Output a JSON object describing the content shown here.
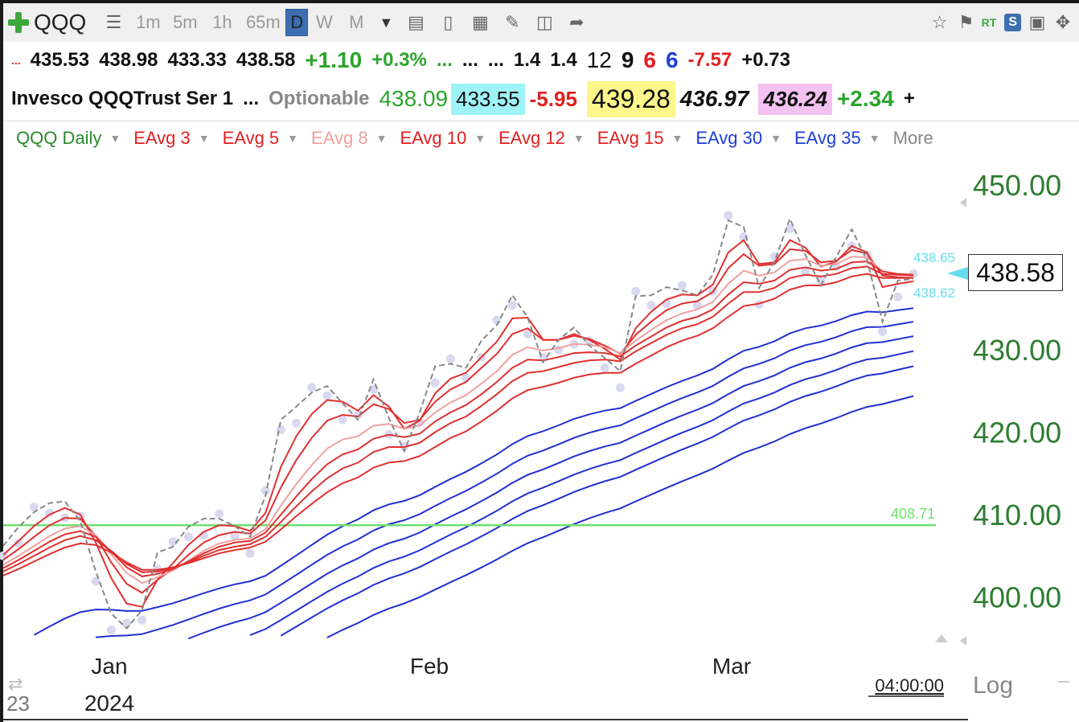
{
  "toolbar": {
    "symbol": "QQQ",
    "intervals": [
      "1m",
      "5m",
      "1h",
      "65m"
    ],
    "periods": [
      "D",
      "W",
      "M"
    ],
    "selected_period": "D",
    "rt_label": "RT",
    "s_label": "S"
  },
  "quote": {
    "dots": "...",
    "open": "435.53",
    "high": "438.98",
    "low": "433.33",
    "close": "438.58",
    "change": "+1.10",
    "change_pct": "+0.3%",
    "dots2": "...",
    "dots3": "...",
    "dots4": "...",
    "v1": "1.4",
    "v2": "1.4",
    "v3": "12",
    "v4": "9",
    "v5": "6",
    "v6": "6",
    "v7": "-7.57",
    "v8": "+0.73"
  },
  "info": {
    "name": "Invesco QQQTrust Ser 1",
    "dots": "...",
    "optionable": "Optionable",
    "last": "438.09",
    "bid": "433.55",
    "neg_change": "-5.95",
    "hi_val": "439.28",
    "val2": "436.97",
    "val3": "436.24",
    "pos_change": "+2.34",
    "more_sign": "+"
  },
  "indicators": [
    {
      "label": "QQQ Daily",
      "color": "#2b8a2b"
    },
    {
      "label": "EAvg 3",
      "color": "#e02020"
    },
    {
      "label": "EAvg 5",
      "color": "#e02020"
    },
    {
      "label": "EAvg 8",
      "color": "#f0a0a0"
    },
    {
      "label": "EAvg 10",
      "color": "#e02020"
    },
    {
      "label": "EAvg 12",
      "color": "#e02020"
    },
    {
      "label": "EAvg 15",
      "color": "#e02020"
    },
    {
      "label": "EAvg 30",
      "color": "#1e3fd8"
    },
    {
      "label": "EAvg 35",
      "color": "#1e3fd8"
    },
    {
      "label": "More",
      "color": "#888888"
    }
  ],
  "chart_data": {
    "type": "line",
    "title": "QQQ Daily",
    "y_ticks": [
      "450.00",
      "430.00",
      "420.00",
      "410.00",
      "400.00"
    ],
    "y_tick_values": [
      450,
      430,
      420,
      410,
      400
    ],
    "ylim": [
      395,
      453
    ],
    "x_tick_labels": [
      "Jan",
      "Feb",
      "Mar"
    ],
    "year_label": "2024",
    "left_edge_label": "23",
    "time_label": "04:00:00",
    "scale_label": "Log",
    "last_price": "438.58",
    "marker_high": "438.65",
    "marker_low": "438.62",
    "horizontal_line": {
      "label": "408.71",
      "value": 408.71,
      "color": "#6fe06f"
    },
    "colors": {
      "price": "#888888",
      "dots": "#d8d8f0",
      "short": "#e03030",
      "short_light": "#f0a0a0",
      "long": "#2030d0",
      "axis_text": "#2e7d32",
      "marker": "#66ddee"
    },
    "x": [
      "Dec 21",
      "Dec 22",
      "Dec 26",
      "Dec 27",
      "Dec 28",
      "Dec 29",
      "Jan 2",
      "Jan 3",
      "Jan 4",
      "Jan 5",
      "Jan 8",
      "Jan 9",
      "Jan 10",
      "Jan 11",
      "Jan 12",
      "Jan 16",
      "Jan 17",
      "Jan 18",
      "Jan 19",
      "Jan 22",
      "Jan 23",
      "Jan 24",
      "Jan 25",
      "Jan 26",
      "Jan 29",
      "Jan 30",
      "Jan 31",
      "Feb 1",
      "Feb 2",
      "Feb 5",
      "Feb 6",
      "Feb 7",
      "Feb 8",
      "Feb 9",
      "Feb 12",
      "Feb 13",
      "Feb 14",
      "Feb 15",
      "Feb 16",
      "Feb 20",
      "Feb 21",
      "Feb 22",
      "Feb 23",
      "Feb 26",
      "Feb 27",
      "Feb 28",
      "Feb 29",
      "Mar 1",
      "Mar 4",
      "Mar 5",
      "Mar 6",
      "Mar 7",
      "Mar 8",
      "Mar 11",
      "Mar 12",
      "Mar 13",
      "Mar 14",
      "Mar 15",
      "Mar 18",
      "Mar 19"
    ],
    "series": [
      {
        "role": "price",
        "values": [
          406.2,
          408.5,
          410.3,
          411.4,
          411.6,
          409.2,
          403.1,
          398.0,
          396.2,
          398.4,
          405.4,
          406.1,
          408.5,
          409.5,
          409.5,
          408.6,
          407.3,
          412.3,
          421.5,
          423.1,
          424.8,
          425.6,
          423.5,
          421.5,
          426.4,
          421.7,
          417.7,
          422.4,
          428.0,
          428.3,
          427.8,
          431.1,
          433.0,
          436.6,
          433.9,
          428.5,
          431.2,
          432.7,
          430.5,
          429.0,
          427.4,
          436.5,
          436.6,
          437.6,
          437.2,
          436.6,
          439.1,
          445.7,
          444.9,
          437.5,
          440.7,
          445.9,
          441.5,
          437.8,
          441.3,
          444.6,
          440.9,
          433.4,
          438.4,
          438.6
        ]
      },
      {
        "role": "ema3",
        "values": [
          405.1,
          406.8,
          408.6,
          410.0,
          410.8,
          410.0,
          406.6,
          402.3,
          399.2,
          398.8,
          402.1,
          404.1,
          406.3,
          407.9,
          408.7,
          408.6,
          408.0,
          410.2,
          415.8,
          419.5,
          422.2,
          423.9,
          423.7,
          422.6,
          424.5,
          423.1,
          420.4,
          421.4,
          424.7,
          426.5,
          427.2,
          429.1,
          431.0,
          433.8,
          433.9,
          431.2,
          431.2,
          431.9,
          431.2,
          430.1,
          428.8,
          432.6,
          434.6,
          436.1,
          436.7,
          436.6,
          437.9,
          441.8,
          443.3,
          440.4,
          440.6,
          443.3,
          442.4,
          440.1,
          440.7,
          442.6,
          441.8,
          437.6,
          438.0,
          438.3
        ]
      },
      {
        "role": "ema5",
        "values": [
          404.5,
          405.8,
          407.3,
          408.7,
          409.6,
          409.5,
          407.4,
          404.2,
          401.6,
          400.5,
          402.1,
          403.4,
          405.1,
          406.6,
          407.5,
          407.9,
          407.7,
          409.3,
          413.3,
          416.6,
          419.3,
          421.4,
          422.1,
          421.9,
          423.4,
          422.8,
          421.1,
          421.5,
          423.7,
          425.2,
          426.1,
          427.8,
          429.5,
          431.9,
          432.6,
          431.2,
          431.2,
          431.7,
          431.3,
          430.5,
          429.5,
          431.8,
          433.4,
          434.8,
          435.6,
          435.9,
          437.0,
          439.9,
          441.6,
          440.2,
          440.4,
          442.2,
          442.0,
          440.6,
          440.8,
          442.1,
          441.7,
          439.0,
          438.8,
          438.7
        ]
      },
      {
        "role": "ema8",
        "values": [
          403.9,
          405.0,
          406.2,
          407.4,
          408.3,
          408.6,
          407.5,
          405.2,
          402.9,
          401.7,
          402.4,
          403.2,
          404.4,
          405.6,
          406.5,
          406.9,
          407.1,
          408.2,
          411.1,
          413.7,
          416.0,
          418.0,
          419.1,
          419.5,
          420.8,
          421.0,
          420.4,
          420.8,
          422.4,
          423.6,
          424.5,
          425.9,
          427.4,
          429.4,
          430.3,
          429.9,
          430.2,
          430.7,
          430.6,
          430.3,
          429.6,
          431.1,
          432.4,
          433.6,
          434.4,
          434.9,
          435.8,
          438.0,
          439.6,
          439.0,
          439.4,
          440.8,
          441.0,
          440.2,
          440.4,
          441.3,
          441.2,
          439.5,
          439.2,
          439.1
        ]
      },
      {
        "role": "ema10",
        "values": [
          403.5,
          404.5,
          405.6,
          406.7,
          407.6,
          408.0,
          407.3,
          405.5,
          403.6,
          402.5,
          402.8,
          403.4,
          404.3,
          405.3,
          406.1,
          406.6,
          406.8,
          407.8,
          410.0,
          412.2,
          414.3,
          416.1,
          417.3,
          417.9,
          419.2,
          419.7,
          419.4,
          419.8,
          421.3,
          422.4,
          423.3,
          424.6,
          426.1,
          427.8,
          428.8,
          428.7,
          429.1,
          429.6,
          429.7,
          429.6,
          429.2,
          430.5,
          431.6,
          432.7,
          433.5,
          434.0,
          434.9,
          436.7,
          438.2,
          438.0,
          438.4,
          439.7,
          440.0,
          439.6,
          439.8,
          440.6,
          440.7,
          439.5,
          439.2,
          439.1
        ]
      },
      {
        "role": "ema12",
        "values": [
          403.1,
          404.0,
          405.0,
          406.0,
          406.9,
          407.4,
          406.9,
          405.6,
          404.0,
          403.0,
          403.1,
          403.5,
          404.2,
          405.0,
          405.7,
          406.1,
          406.4,
          407.3,
          409.1,
          411.0,
          412.8,
          414.4,
          415.6,
          416.3,
          417.6,
          418.2,
          418.2,
          418.7,
          420.0,
          421.1,
          421.9,
          423.2,
          424.6,
          426.2,
          427.2,
          427.4,
          427.9,
          428.4,
          428.7,
          428.8,
          428.6,
          429.8,
          430.8,
          431.8,
          432.6,
          433.1,
          434.0,
          435.6,
          437.0,
          437.0,
          437.5,
          438.7,
          439.1,
          438.9,
          439.2,
          439.9,
          440.1,
          439.2,
          439.1,
          439.0
        ]
      },
      {
        "role": "ema15",
        "values": [
          402.6,
          403.4,
          404.3,
          405.2,
          406.0,
          406.5,
          406.3,
          405.4,
          404.2,
          403.3,
          403.3,
          403.6,
          404.1,
          404.7,
          405.3,
          405.7,
          406.0,
          406.7,
          408.2,
          409.8,
          411.3,
          412.7,
          413.8,
          414.5,
          415.7,
          416.3,
          416.5,
          417.1,
          418.2,
          419.3,
          420.1,
          421.3,
          422.6,
          424.1,
          425.1,
          425.5,
          426.0,
          426.6,
          427.0,
          427.2,
          427.2,
          428.3,
          429.3,
          430.3,
          431.1,
          431.7,
          432.6,
          434.0,
          435.3,
          435.6,
          436.2,
          437.3,
          437.8,
          437.8,
          438.2,
          438.9,
          439.2,
          438.7,
          438.7,
          438.7
        ]
      },
      {
        "role": "ema_long1",
        "values": [
          null,
          null,
          null,
          null,
          null,
          null,
          null,
          null,
          null,
          null,
          null,
          null,
          null,
          null,
          null,
          null,
          null,
          null,
          null,
          null,
          null,
          null,
          null,
          null,
          null,
          null,
          null,
          null,
          null,
          null,
          null,
          null,
          null,
          null,
          null,
          null,
          null,
          null,
          null,
          null,
          null,
          null,
          null,
          null,
          null,
          null,
          null,
          null,
          null,
          null,
          null,
          null,
          null,
          null,
          null,
          null,
          null,
          null,
          null,
          null
        ]
      }
    ]
  }
}
